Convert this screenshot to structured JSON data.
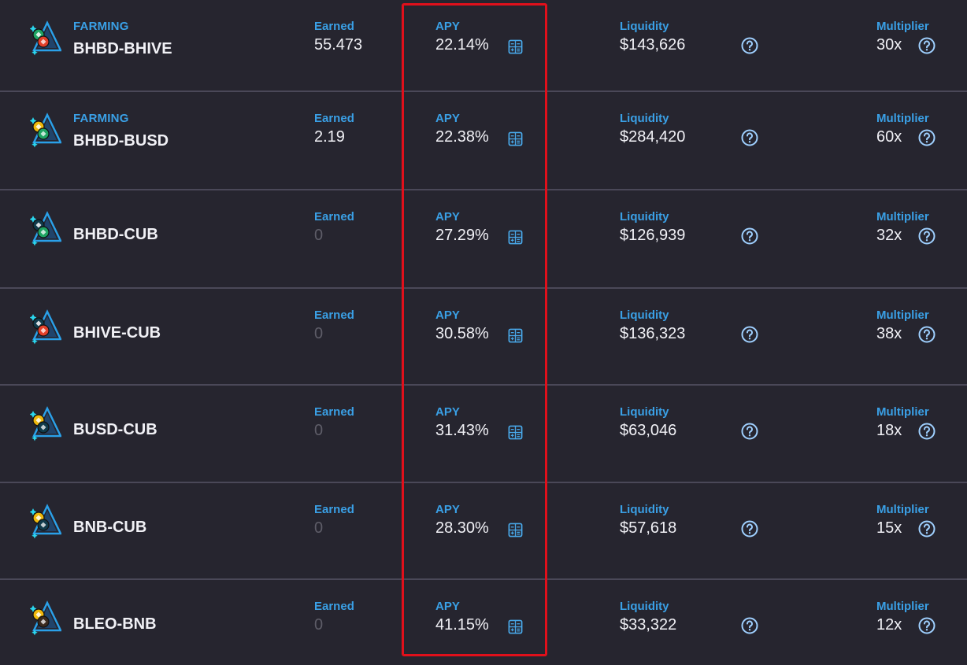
{
  "colors": {
    "background": "#26252f",
    "divider": "#4a4858",
    "accent": "#3aa0e6",
    "text": "#f1f1f6",
    "muted": "#5e5d68",
    "highlight": "#e0101b"
  },
  "labels": {
    "earned": "Earned",
    "apy": "APY",
    "liquidity": "Liquidity",
    "multiplier": "Multiplier"
  },
  "icons": {
    "calculator": "calculator-icon",
    "help": "question-circle-icon",
    "token_pair": "token-pair-icon"
  },
  "farms": [
    {
      "tag": "FARMING",
      "pair": "BHBD-BHIVE",
      "earned": "55.473",
      "earned_zero": false,
      "apy": "22.14%",
      "liquidity": "$143,626",
      "multiplier": "30x",
      "coin_a": "#1fa463",
      "coin_b": "#e2402a"
    },
    {
      "tag": "FARMING",
      "pair": "BHBD-BUSD",
      "earned": "2.19",
      "earned_zero": false,
      "apy": "22.38%",
      "liquidity": "$284,420",
      "multiplier": "60x",
      "coin_a": "#f0b90b",
      "coin_b": "#1fa463"
    },
    {
      "tag": "",
      "pair": "BHBD-CUB",
      "earned": "0",
      "earned_zero": true,
      "apy": "27.29%",
      "liquidity": "$126,939",
      "multiplier": "32x",
      "coin_a": "#103a4a",
      "coin_b": "#1fa463"
    },
    {
      "tag": "",
      "pair": "BHIVE-CUB",
      "earned": "0",
      "earned_zero": true,
      "apy": "30.58%",
      "liquidity": "$136,323",
      "multiplier": "38x",
      "coin_a": "#103a4a",
      "coin_b": "#e2402a"
    },
    {
      "tag": "",
      "pair": "BUSD-CUB",
      "earned": "0",
      "earned_zero": true,
      "apy": "31.43%",
      "liquidity": "$63,046",
      "multiplier": "18x",
      "coin_a": "#f0b90b",
      "coin_b": "#103a4a"
    },
    {
      "tag": "",
      "pair": "BNB-CUB",
      "earned": "0",
      "earned_zero": true,
      "apy": "28.30%",
      "liquidity": "$57,618",
      "multiplier": "15x",
      "coin_a": "#f0b90b",
      "coin_b": "#103a4a"
    },
    {
      "tag": "",
      "pair": "BLEO-BNB",
      "earned": "0",
      "earned_zero": true,
      "apy": "41.15%",
      "liquidity": "$33,322",
      "multiplier": "12x",
      "coin_a": "#f0b90b",
      "coin_b": "#3a2a1e"
    }
  ]
}
